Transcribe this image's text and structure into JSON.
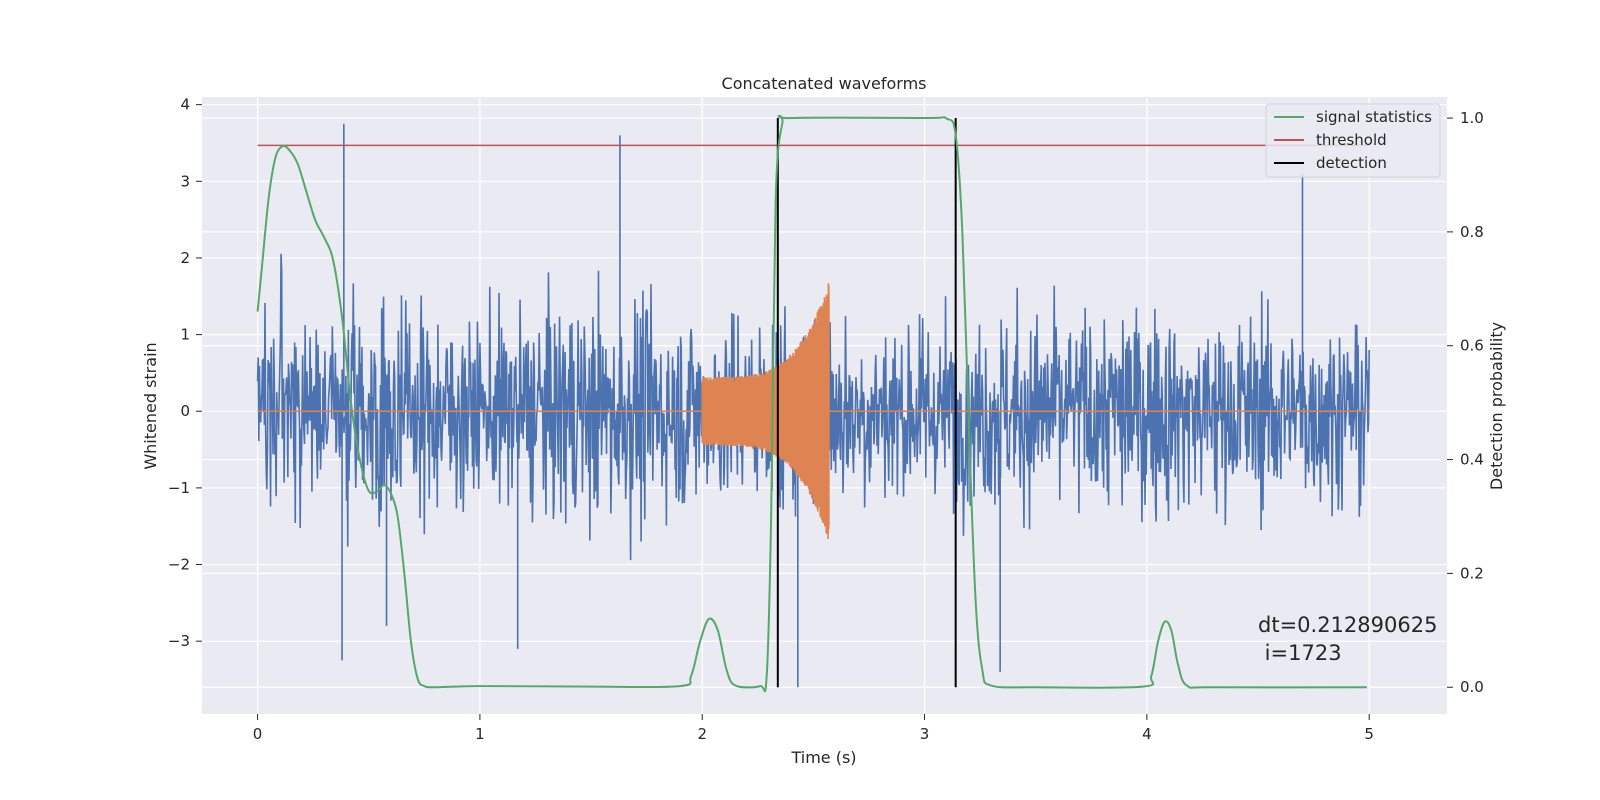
{
  "chart_data": {
    "type": "line",
    "title": "Concatenated waveforms",
    "xlabel": "Time (s)",
    "ylabel": "Whitened strain",
    "y2label": "Detection probability",
    "xlim": [
      -0.25,
      5.35
    ],
    "ylim": [
      -3.95,
      4.1
    ],
    "y2lim": [
      -0.047,
      1.037
    ],
    "x_ticks": [
      0,
      1,
      2,
      3,
      4,
      5
    ],
    "x_tick_labels": [
      "0",
      "1",
      "2",
      "3",
      "4",
      "5"
    ],
    "y_ticks": [
      -3,
      -2,
      -1,
      0,
      1,
      2,
      3,
      4
    ],
    "y_tick_labels": [
      "−3",
      "−2",
      "−1",
      "0",
      "1",
      "2",
      "3",
      "4"
    ],
    "y2_ticks": [
      0.0,
      0.2,
      0.4,
      0.6,
      0.8,
      1.0
    ],
    "y2_tick_labels": [
      "0.0",
      "0.2",
      "0.4",
      "0.6",
      "0.8",
      "1.0"
    ],
    "grid": true,
    "legend_position": "top-right",
    "colors": {
      "background": "#eaeaf2",
      "grid": "#ffffff",
      "strain": "#4c72b0",
      "template": "#dd8452",
      "signal": "#55a868",
      "threshold": "#c44e52",
      "detection": "#000000"
    },
    "series": [
      {
        "name": "",
        "axis": "left",
        "description_free": true,
        "x_range": [
          0,
          5
        ],
        "amplitude_envelope": [
          [
            0.0,
            2.2
          ],
          [
            0.4,
            2.6
          ],
          [
            1.0,
            2.3
          ],
          [
            1.6,
            2.9
          ],
          [
            2.0,
            2.3
          ],
          [
            2.4,
            2.6
          ],
          [
            3.0,
            2.2
          ],
          [
            3.5,
            2.5
          ],
          [
            4.0,
            2.5
          ],
          [
            4.5,
            2.4
          ],
          [
            5.0,
            2.2
          ]
        ],
        "peaks": [
          [
            0.388,
            3.75
          ],
          [
            0.38,
            -3.25
          ],
          [
            1.63,
            3.6
          ],
          [
            2.43,
            -3.6
          ],
          [
            3.34,
            -3.4
          ],
          [
            4.7,
            3.1
          ],
          [
            0.58,
            -2.8
          ],
          [
            1.17,
            -3.1
          ]
        ]
      },
      {
        "name": "",
        "axis": "left",
        "x_range": [
          0,
          5
        ],
        "chirp_start": 2.0,
        "chirp_end": 2.57,
        "chirp_amp_start": 0.45,
        "chirp_amp_end": 1.7
      },
      {
        "name": "signal statistics",
        "axis": "right",
        "points": [
          [
            0.0,
            0.66
          ],
          [
            0.02,
            0.74
          ],
          [
            0.05,
            0.86
          ],
          [
            0.08,
            0.93
          ],
          [
            0.11,
            0.95
          ],
          [
            0.14,
            0.945
          ],
          [
            0.18,
            0.92
          ],
          [
            0.22,
            0.87
          ],
          [
            0.26,
            0.82
          ],
          [
            0.3,
            0.79
          ],
          [
            0.34,
            0.75
          ],
          [
            0.38,
            0.65
          ],
          [
            0.42,
            0.5
          ],
          [
            0.46,
            0.4
          ],
          [
            0.5,
            0.345
          ],
          [
            0.54,
            0.345
          ],
          [
            0.57,
            0.355
          ],
          [
            0.6,
            0.34
          ],
          [
            0.63,
            0.3
          ],
          [
            0.66,
            0.2
          ],
          [
            0.69,
            0.08
          ],
          [
            0.72,
            0.015
          ],
          [
            0.75,
            0.002
          ],
          [
            0.8,
            0.0
          ],
          [
            1.0,
            0.002
          ],
          [
            1.5,
            0.001
          ],
          [
            1.9,
            0.002
          ],
          [
            1.95,
            0.02
          ],
          [
            1.99,
            0.08
          ],
          [
            2.03,
            0.12
          ],
          [
            2.07,
            0.1
          ],
          [
            2.11,
            0.03
          ],
          [
            2.15,
            0.003
          ],
          [
            2.26,
            0.002
          ],
          [
            2.29,
            0.02
          ],
          [
            2.31,
            0.3
          ],
          [
            2.33,
            0.85
          ],
          [
            2.36,
            0.99
          ],
          [
            2.4,
            1.0
          ],
          [
            3.0,
            1.0
          ],
          [
            3.1,
            0.999
          ],
          [
            3.14,
            0.97
          ],
          [
            3.17,
            0.8
          ],
          [
            3.2,
            0.45
          ],
          [
            3.23,
            0.15
          ],
          [
            3.26,
            0.03
          ],
          [
            3.3,
            0.003
          ],
          [
            3.5,
            0.0
          ],
          [
            3.98,
            0.001
          ],
          [
            4.02,
            0.02
          ],
          [
            4.05,
            0.08
          ],
          [
            4.08,
            0.115
          ],
          [
            4.11,
            0.1
          ],
          [
            4.14,
            0.04
          ],
          [
            4.18,
            0.003
          ],
          [
            4.3,
            0.0
          ],
          [
            4.99,
            0.0
          ]
        ]
      },
      {
        "name": "threshold",
        "axis": "right",
        "points": [
          [
            0.0,
            0.952
          ],
          [
            5.0,
            0.952
          ]
        ]
      },
      {
        "name": "detection",
        "axis": "right",
        "vertical_lines_x": [
          2.34,
          3.14
        ],
        "y_range": [
          0.0,
          1.0
        ]
      }
    ],
    "annotation": {
      "line1": "dt=0.212890625",
      "line2": " i=1723"
    }
  }
}
